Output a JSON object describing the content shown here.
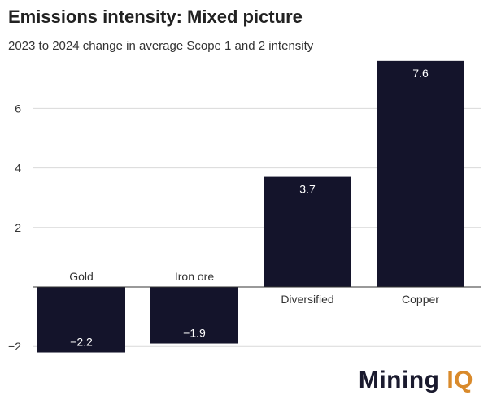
{
  "title": "Emissions intensity: Mixed picture",
  "subtitle": "2023 to 2024 change in average Scope 1 and 2 intensity",
  "logo": {
    "text": "Mining",
    "accent": "IQ",
    "accent_color": "#d98a2b"
  },
  "chart_data": {
    "type": "bar",
    "categories": [
      "Gold",
      "Iron ore",
      "Diversified",
      "Copper"
    ],
    "values": [
      -2.2,
      -1.9,
      3.7,
      7.6
    ],
    "value_labels": [
      "−2.2",
      "−1.9",
      "3.7",
      "7.6"
    ],
    "title": "Emissions intensity: Mixed picture",
    "xlabel": "",
    "ylabel": "",
    "ylim": [
      -2.5,
      7.6
    ],
    "yticks": [
      -2,
      2,
      4,
      6
    ],
    "ytick_labels": [
      "−2",
      "2",
      "4",
      "6"
    ],
    "grid": true,
    "bar_color": "#14142b"
  }
}
